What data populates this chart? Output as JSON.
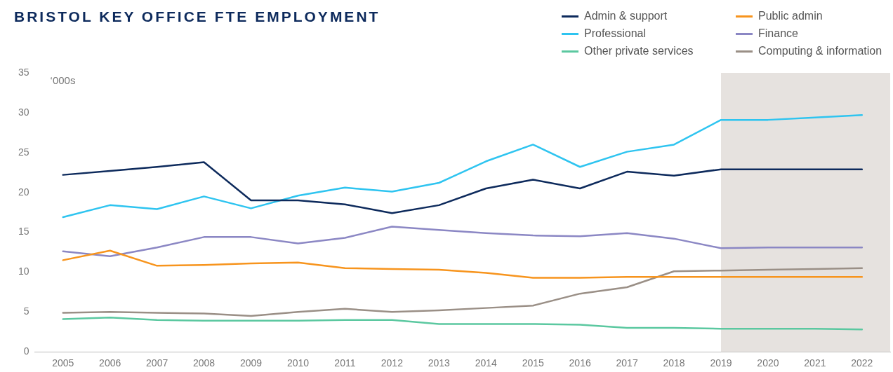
{
  "chart_data": {
    "type": "line",
    "title": "BRISTOL KEY OFFICE FTE EMPLOYMENT",
    "ylabel": "‘000s",
    "x": [
      2005,
      2006,
      2007,
      2008,
      2009,
      2010,
      2011,
      2012,
      2013,
      2014,
      2015,
      2016,
      2017,
      2018,
      2019,
      2020,
      2021,
      2022
    ],
    "xlim": [
      2004.4,
      2022.6
    ],
    "xticks": [
      2005,
      2006,
      2007,
      2008,
      2009,
      2010,
      2011,
      2012,
      2013,
      2014,
      2015,
      2016,
      2017,
      2018,
      2019,
      2020,
      2021,
      2022
    ],
    "ylim": [
      0,
      35
    ],
    "yticks": [
      0,
      5,
      10,
      15,
      20,
      25,
      30,
      35
    ],
    "grid": false,
    "legend": "top right",
    "marker": "none",
    "line_style": "solid",
    "bands": [
      {
        "axis": "x",
        "from": 2019,
        "to": 2022.6,
        "color": "#e6e2df"
      }
    ],
    "series": [
      {
        "name": "Admin & support",
        "color": "#0d2a5c",
        "values": [
          22.2,
          22.7,
          23.2,
          23.8,
          19.0,
          19.0,
          18.5,
          17.4,
          18.4,
          20.5,
          21.6,
          20.5,
          22.6,
          22.1,
          22.9,
          22.9,
          22.9,
          22.9
        ]
      },
      {
        "name": "Public admin",
        "color": "#f7941d",
        "values": [
          11.5,
          12.7,
          10.8,
          10.9,
          11.1,
          11.2,
          10.5,
          10.4,
          10.3,
          9.9,
          9.3,
          9.3,
          9.4,
          9.4,
          9.4,
          9.4,
          9.4,
          9.4
        ]
      },
      {
        "name": "Professional",
        "color": "#2ec4f0",
        "values": [
          16.9,
          18.4,
          17.9,
          19.5,
          18.0,
          19.6,
          20.6,
          20.1,
          21.2,
          23.9,
          26.0,
          23.2,
          25.1,
          26.0,
          29.1,
          29.1,
          29.4,
          29.7
        ]
      },
      {
        "name": "Finance",
        "color": "#8b87c4",
        "values": [
          12.6,
          12.0,
          13.1,
          14.4,
          14.4,
          13.6,
          14.3,
          15.7,
          15.3,
          14.9,
          14.6,
          14.5,
          14.9,
          14.2,
          13.0,
          13.1,
          13.1,
          13.1
        ]
      },
      {
        "name": "Other private services",
        "color": "#5bc8a0",
        "values": [
          4.1,
          4.3,
          4.0,
          3.9,
          3.9,
          3.9,
          4.0,
          4.0,
          3.5,
          3.5,
          3.5,
          3.4,
          3.0,
          3.0,
          2.9,
          2.9,
          2.9,
          2.8
        ]
      },
      {
        "name": "Computing & information",
        "color": "#9a8f86",
        "values": [
          4.9,
          5.0,
          4.9,
          4.8,
          4.5,
          5.0,
          5.4,
          5.0,
          5.2,
          5.5,
          5.8,
          7.3,
          8.1,
          10.1,
          10.2,
          10.3,
          10.4,
          10.5
        ]
      }
    ]
  }
}
